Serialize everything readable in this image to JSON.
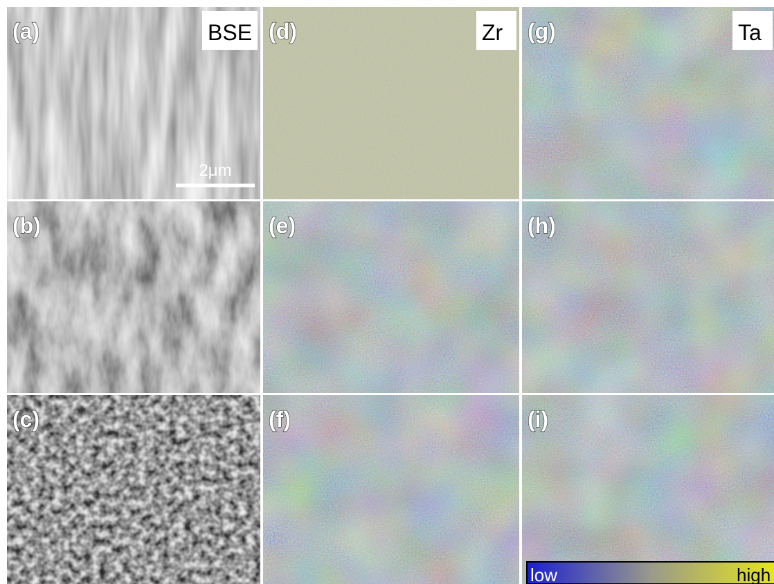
{
  "panels": [
    {
      "label": "(a)"
    },
    {
      "label": "(d)"
    },
    {
      "label": "(g)"
    },
    {
      "label": "(b)"
    },
    {
      "label": "(e)"
    },
    {
      "label": "(h)"
    },
    {
      "label": "(c)"
    },
    {
      "label": "(f)"
    },
    {
      "label": "(i)"
    }
  ],
  "column_titles": [
    "BSE",
    "Zr",
    "Ta"
  ],
  "scale_bar": "2μm",
  "colorbar": {
    "low": "low",
    "high": "high"
  }
}
